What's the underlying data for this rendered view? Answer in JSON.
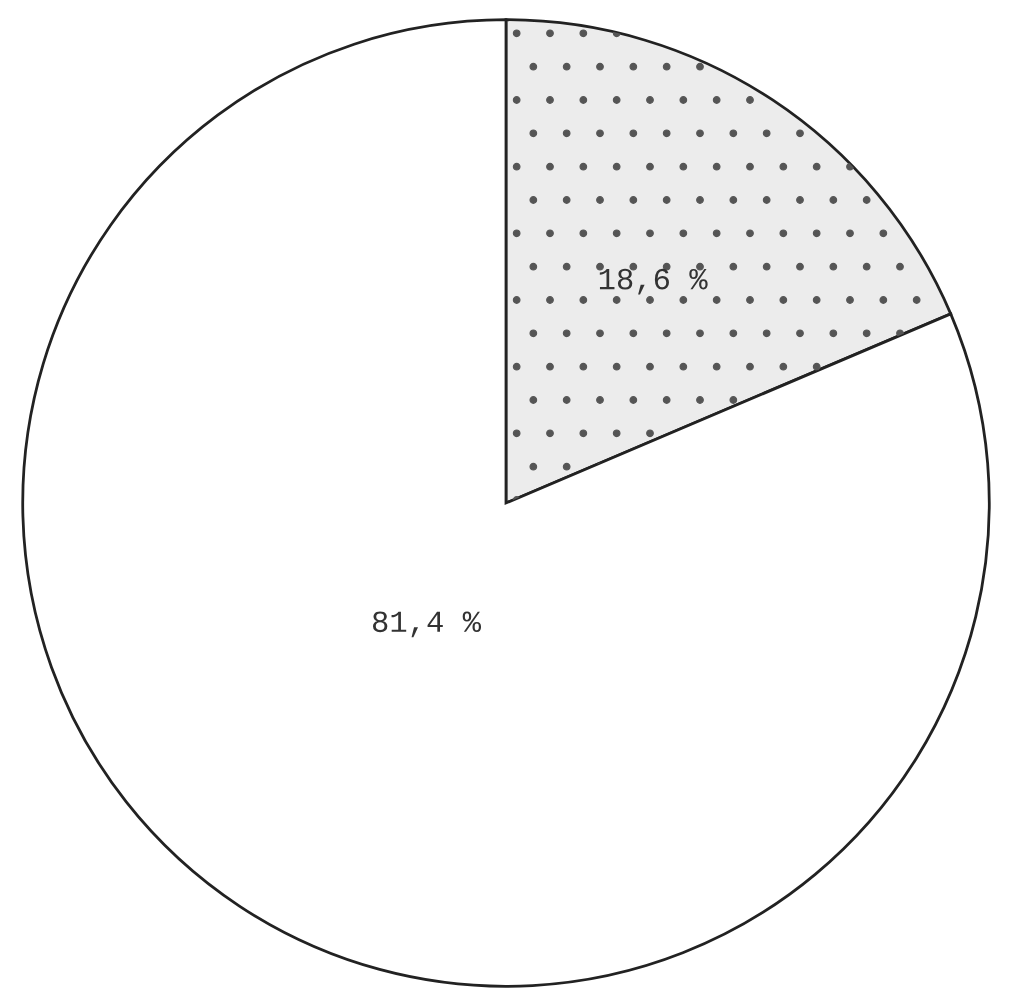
{
  "chart_data": {
    "type": "pie",
    "categories": [
      null,
      null
    ],
    "values": [
      18.6,
      81.4
    ],
    "colors": [
      "#ececec",
      "#ffffff"
    ],
    "value_labels": [
      "18,6 %",
      "81,4 %"
    ]
  }
}
